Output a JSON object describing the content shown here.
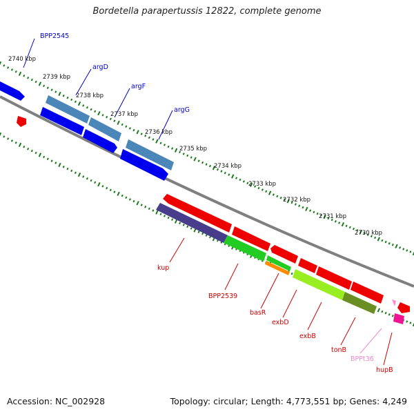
{
  "title": "Bordetella parapertussis 12822, complete genome",
  "footer": {
    "accession": "Accession: NC_002928",
    "summary": "Topology: circular; Length: 4,773,551 bp; Genes: 4,249"
  },
  "colors": {
    "backbone": "#808080",
    "tick": "#1a7a1a",
    "label_blue": "#0000cc",
    "label_red": "#cc0000",
    "label_pink": "#ee88cc",
    "gene_blue": "#0000ee",
    "gene_steel": "#4682b4",
    "gene_red": "#ee0000",
    "gene_navy": "#483d8b",
    "gene_green": "#22cc22",
    "gene_orange": "#ff8c00",
    "gene_lime": "#99ee22",
    "gene_olive": "#6b8e23",
    "gene_magenta": "#ee1493"
  },
  "scale_labels": [
    "2740 kbp",
    "2739 kbp",
    "2738 kbp",
    "2737 kbp",
    "2736 kbp",
    "2735 kbp",
    "2734 kbp",
    "2733 kbp",
    "2732 kbp",
    "2731 kbp",
    "2730 kbp"
  ],
  "gene_labels": [
    "BPP2545",
    "argD",
    "argF",
    "argG",
    "kup",
    "BPP2539",
    "basR",
    "exbD",
    "exbB",
    "tonB",
    "BPPt36",
    "hupB"
  ]
}
